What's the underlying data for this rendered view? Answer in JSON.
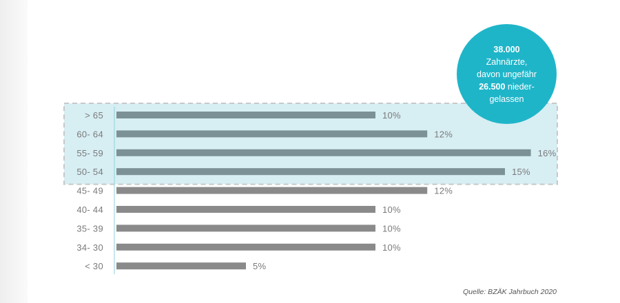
{
  "chart_data": {
    "type": "bar",
    "orientation": "horizontal",
    "categories": [
      "> 65",
      "60- 64",
      "55- 59",
      "50- 54",
      "45- 49",
      "40- 44",
      "35- 39",
      "34- 30",
      "< 30"
    ],
    "values": [
      10,
      12,
      16,
      15,
      12,
      10,
      10,
      10,
      5
    ],
    "value_labels": [
      "10%",
      "12%",
      "16%",
      "15%",
      "12%",
      "10%",
      "10%",
      "10%",
      "5%"
    ],
    "highlighted_categories": [
      "> 65",
      "60- 64",
      "55- 59",
      "50- 54"
    ],
    "xlim": [
      0,
      16
    ],
    "grid": false,
    "legend": "none",
    "colors": {
      "bar": "#8a8a8a",
      "bar_highlight": "#7b9196",
      "highlight_band": "#d7eef3",
      "highlight_border": "#c8c8c8",
      "axis": "#8fd0dc"
    }
  },
  "callout": {
    "line1": "38.000",
    "line2": "Zahnärzte,",
    "line3": "davon ungefähr",
    "line4_bold": "26.500",
    "line4_rest": " nieder-",
    "line5": "gelassen",
    "color": "#1fb5c9"
  },
  "source": "Quelle: BZÄK Jahrbuch 2020"
}
